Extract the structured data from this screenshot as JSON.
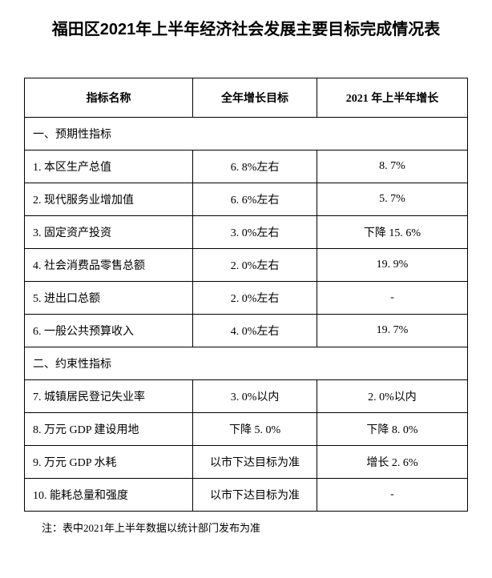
{
  "title": "福田区2021年上半年经济社会发展主要目标完成情况表",
  "headers": {
    "name": "指标名称",
    "target": "全年增长目标",
    "actual": "2021 年上半年增长"
  },
  "sections": {
    "s1": "一、预期性指标",
    "s2": "二、约束性指标"
  },
  "rows": {
    "r1": {
      "label": "1. 本区生产总值",
      "target": "6. 8%左右",
      "actual": "8. 7%"
    },
    "r2": {
      "label": "2. 现代服务业增加值",
      "target": "6. 6%左右",
      "actual": "5. 7%"
    },
    "r3": {
      "label": "3. 固定资产投资",
      "target": "3. 0%左右",
      "actual": "下降 15. 6%"
    },
    "r4": {
      "label": "4. 社会消费品零售总额",
      "target": "2. 0%左右",
      "actual": "19. 9%"
    },
    "r5": {
      "label": "5. 进出口总额",
      "target": "2. 0%左右",
      "actual": "-"
    },
    "r6": {
      "label": "6. 一般公共预算收入",
      "target": "4. 0%左右",
      "actual": "19. 7%"
    },
    "r7": {
      "label": "7. 城镇居民登记失业率",
      "target": "3. 0%以内",
      "actual": "2. 0%以内"
    },
    "r8": {
      "label": "8. 万元 GDP 建设用地",
      "target": "下降 5. 0%",
      "actual": "下降 8. 0%"
    },
    "r9": {
      "label": "9. 万元 GDP 水耗",
      "target": "以市下达目标为准",
      "actual": "增长 2. 6%"
    },
    "r10": {
      "label": "10. 能耗总量和强度",
      "target": "以市下达目标为准",
      "actual": "-"
    }
  },
  "note": "注：表中2021年上半年数据以统计部门发布为准"
}
